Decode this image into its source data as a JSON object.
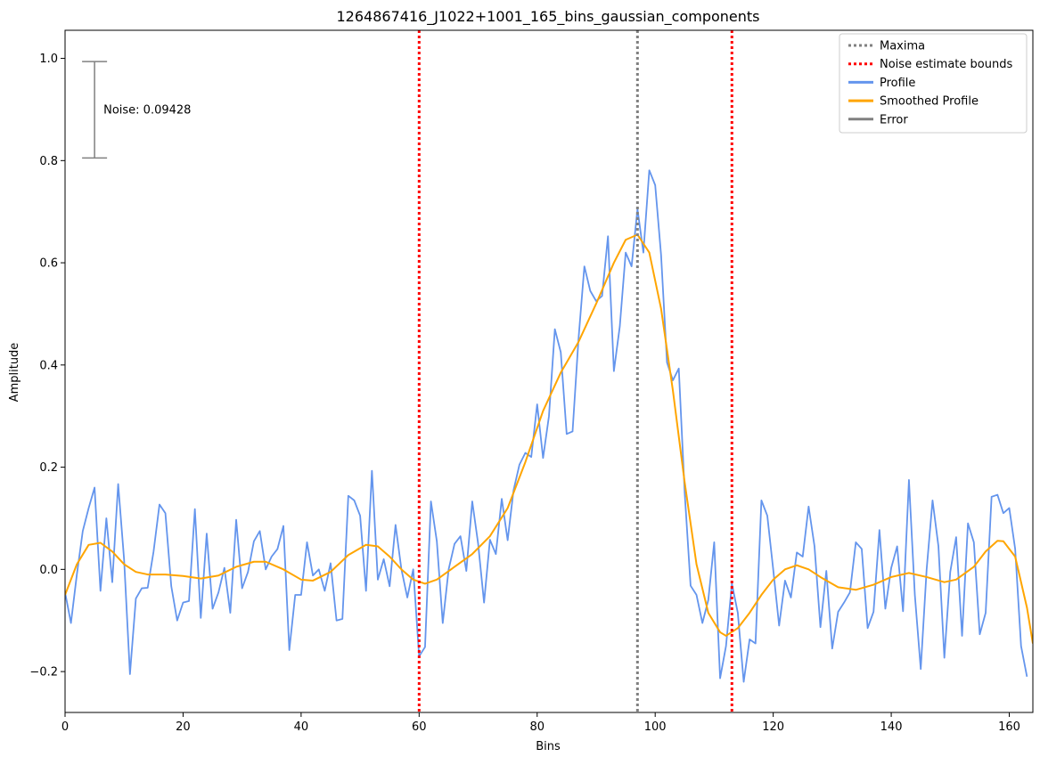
{
  "chart_data": {
    "type": "line",
    "title": "1264867416_J1022+1001_165_bins_gaussian_components",
    "xlabel": "Bins",
    "ylabel": "Amplitude",
    "xlim": [
      0,
      164
    ],
    "ylim": [
      -0.28,
      1.055
    ],
    "xticks": [
      0,
      20,
      40,
      60,
      80,
      100,
      120,
      140,
      160
    ],
    "xtick_labels": [
      "0",
      "20",
      "40",
      "60",
      "80",
      "100",
      "120",
      "140",
      "160"
    ],
    "yticks": [
      -0.2,
      0.0,
      0.2,
      0.4,
      0.6,
      0.8,
      1.0
    ],
    "ytick_labels": [
      "−0.2",
      "0.0",
      "0.2",
      "0.4",
      "0.6",
      "0.8",
      "1.0"
    ],
    "grid": false,
    "legend_position": "top-right",
    "series": [
      {
        "name": "Profile",
        "color": "#6495ed",
        "x_start": 0,
        "values": [
          -0.045,
          -0.105,
          -0.01,
          0.075,
          0.12,
          0.16,
          -0.042,
          0.1,
          -0.025,
          0.167,
          0.02,
          -0.205,
          -0.057,
          -0.037,
          -0.036,
          0.035,
          0.127,
          0.11,
          -0.033,
          -0.1,
          -0.065,
          -0.062,
          0.118,
          -0.095,
          0.07,
          -0.077,
          -0.045,
          0.003,
          -0.085,
          0.097,
          -0.037,
          -0.005,
          0.055,
          0.075,
          0.0,
          0.025,
          0.04,
          0.085,
          -0.158,
          -0.05,
          -0.05,
          0.053,
          -0.012,
          0.0,
          -0.042,
          0.012,
          -0.1,
          -0.097,
          0.144,
          0.135,
          0.105,
          -0.042,
          0.193,
          -0.02,
          0.02,
          -0.033,
          0.087,
          0.0,
          -0.055,
          0.0,
          -0.17,
          -0.152,
          0.133,
          0.055,
          -0.105,
          0.0,
          0.05,
          0.065,
          -0.003,
          0.133,
          0.05,
          -0.065,
          0.058,
          0.03,
          0.138,
          0.057,
          0.155,
          0.205,
          0.228,
          0.22,
          0.323,
          0.218,
          0.3,
          0.47,
          0.425,
          0.265,
          0.27,
          0.45,
          0.593,
          0.545,
          0.525,
          0.535,
          0.652,
          0.388,
          0.475,
          0.62,
          0.593,
          0.705,
          0.62,
          0.781,
          0.752,
          0.615,
          0.405,
          0.37,
          0.393,
          0.15,
          -0.032,
          -0.05,
          -0.105,
          -0.06,
          0.053,
          -0.213,
          -0.15,
          -0.028,
          -0.085,
          -0.22,
          -0.137,
          -0.145,
          0.135,
          0.105,
          0.0,
          -0.11,
          -0.022,
          -0.055,
          0.033,
          0.025,
          0.123,
          0.045,
          -0.113,
          -0.003,
          -0.155,
          -0.083,
          -0.065,
          -0.045,
          0.053,
          0.04,
          -0.115,
          -0.083,
          0.077,
          -0.077,
          0.003,
          0.045,
          -0.082,
          0.175,
          -0.05,
          -0.195,
          0.0,
          0.135,
          0.045,
          -0.173,
          -0.005,
          0.063,
          -0.13,
          0.09,
          0.053,
          -0.127,
          -0.085,
          0.142,
          0.146,
          0.11,
          0.12,
          0.04,
          -0.15,
          -0.21
        ]
      },
      {
        "name": "Smoothed Profile",
        "color": "#ffa500",
        "points": [
          [
            0,
            -0.05
          ],
          [
            2,
            0.01
          ],
          [
            4,
            0.048
          ],
          [
            6,
            0.052
          ],
          [
            8,
            0.035
          ],
          [
            10,
            0.01
          ],
          [
            12,
            -0.005
          ],
          [
            14,
            -0.01
          ],
          [
            17,
            -0.01
          ],
          [
            20,
            -0.013
          ],
          [
            23,
            -0.018
          ],
          [
            26,
            -0.012
          ],
          [
            29,
            0.005
          ],
          [
            32,
            0.015
          ],
          [
            34,
            0.015
          ],
          [
            37,
            0.0
          ],
          [
            40,
            -0.02
          ],
          [
            42,
            -0.022
          ],
          [
            45,
            -0.005
          ],
          [
            48,
            0.028
          ],
          [
            51,
            0.048
          ],
          [
            53,
            0.045
          ],
          [
            55,
            0.025
          ],
          [
            57,
            0.0
          ],
          [
            59,
            -0.02
          ],
          [
            61,
            -0.028
          ],
          [
            63,
            -0.02
          ],
          [
            66,
            0.005
          ],
          [
            69,
            0.03
          ],
          [
            72,
            0.065
          ],
          [
            75,
            0.12
          ],
          [
            78,
            0.21
          ],
          [
            81,
            0.31
          ],
          [
            84,
            0.385
          ],
          [
            87,
            0.445
          ],
          [
            90,
            0.52
          ],
          [
            93,
            0.6
          ],
          [
            95,
            0.645
          ],
          [
            97,
            0.655
          ],
          [
            99,
            0.62
          ],
          [
            101,
            0.51
          ],
          [
            103,
            0.35
          ],
          [
            105,
            0.17
          ],
          [
            107,
            0.01
          ],
          [
            109,
            -0.085
          ],
          [
            111,
            -0.123
          ],
          [
            112,
            -0.13
          ],
          [
            114,
            -0.115
          ],
          [
            116,
            -0.085
          ],
          [
            118,
            -0.05
          ],
          [
            120,
            -0.02
          ],
          [
            122,
            0.0
          ],
          [
            124,
            0.008
          ],
          [
            126,
            0.0
          ],
          [
            128,
            -0.015
          ],
          [
            131,
            -0.035
          ],
          [
            134,
            -0.04
          ],
          [
            137,
            -0.03
          ],
          [
            140,
            -0.015
          ],
          [
            143,
            -0.007
          ],
          [
            146,
            -0.015
          ],
          [
            149,
            -0.025
          ],
          [
            151,
            -0.02
          ],
          [
            154,
            0.005
          ],
          [
            156,
            0.035
          ],
          [
            158,
            0.056
          ],
          [
            159,
            0.055
          ],
          [
            161,
            0.025
          ],
          [
            163,
            -0.075
          ],
          [
            164,
            -0.145
          ]
        ]
      }
    ],
    "vlines": [
      {
        "name": "Maxima",
        "x": 97,
        "color": "#808080",
        "style": "dotted"
      },
      {
        "name": "Noise estimate bounds",
        "x": 60,
        "color": "#ff0000",
        "style": "dotted"
      },
      {
        "name": "Noise estimate bounds",
        "x": 113,
        "color": "#ff0000",
        "style": "dotted"
      }
    ],
    "error_bar": {
      "name": "Error",
      "x": 5,
      "center": 0.8994,
      "half_width": 0.09428,
      "color": "#808080",
      "label": "Noise: 0.09428"
    },
    "legend": [
      {
        "label": "Maxima",
        "color": "#808080",
        "style": "dotted"
      },
      {
        "label": "Noise estimate bounds",
        "color": "#ff0000",
        "style": "dotted"
      },
      {
        "label": "Profile",
        "color": "#6495ed",
        "style": "solid"
      },
      {
        "label": "Smoothed Profile",
        "color": "#ffa500",
        "style": "solid"
      },
      {
        "label": "Error",
        "color": "#808080",
        "style": "solid"
      }
    ]
  }
}
